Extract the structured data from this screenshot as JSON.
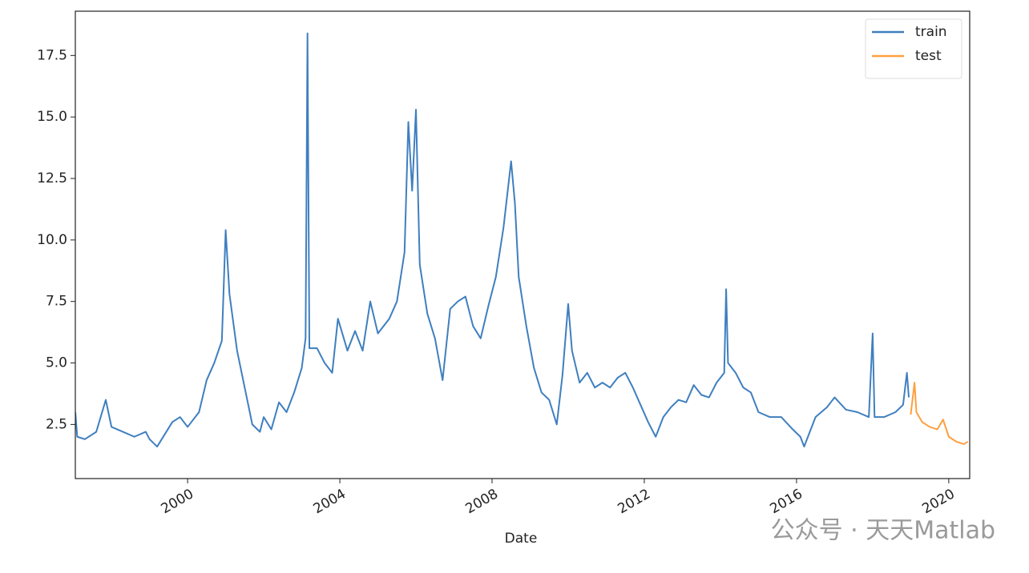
{
  "chart_data": {
    "type": "line",
    "x_label": "Date",
    "xlim": [
      1997.05,
      2020.55
    ],
    "xticks": [
      2000,
      2004,
      2008,
      2012,
      2016,
      2020
    ],
    "ylim": [
      0.3,
      19.3
    ],
    "yticks": [
      {
        "value": 2.5,
        "label": "2.5"
      },
      {
        "value": 5,
        "label": "5.0"
      },
      {
        "value": 7.5,
        "label": "7.5"
      },
      {
        "value": 10,
        "label": "10.0"
      },
      {
        "value": 12.5,
        "label": "12.5"
      },
      {
        "value": 15,
        "label": "15.0"
      },
      {
        "value": 17.5,
        "label": "17.5"
      }
    ],
    "legend": "upper right",
    "series": [
      {
        "name": "train",
        "color": "#3f7fbf",
        "x": [
          1997.05,
          1997.1,
          1997.3,
          1997.6,
          1997.85,
          1998.0,
          1998.3,
          1998.6,
          1998.9,
          1999.0,
          1999.2,
          1999.4,
          1999.6,
          1999.8,
          2000.0,
          2000.3,
          2000.5,
          2000.7,
          2000.9,
          2001.0,
          2001.1,
          2001.3,
          2001.5,
          2001.7,
          2001.9,
          2002.0,
          2002.2,
          2002.4,
          2002.6,
          2002.8,
          2003.0,
          2003.1,
          2003.15,
          2003.2,
          2003.4,
          2003.6,
          2003.8,
          2003.95,
          2004.2,
          2004.4,
          2004.6,
          2004.8,
          2005.0,
          2005.3,
          2005.5,
          2005.7,
          2005.8,
          2005.9,
          2006.0,
          2006.1,
          2006.3,
          2006.5,
          2006.7,
          2006.9,
          2007.1,
          2007.3,
          2007.5,
          2007.7,
          2007.9,
          2008.1,
          2008.3,
          2008.5,
          2008.6,
          2008.7,
          2008.9,
          2009.1,
          2009.3,
          2009.5,
          2009.7,
          2009.85,
          2010.0,
          2010.1,
          2010.3,
          2010.5,
          2010.7,
          2010.9,
          2011.1,
          2011.3,
          2011.5,
          2011.7,
          2011.9,
          2012.1,
          2012.3,
          2012.5,
          2012.7,
          2012.9,
          2013.1,
          2013.3,
          2013.5,
          2013.7,
          2013.9,
          2014.1,
          2014.15,
          2014.2,
          2014.4,
          2014.6,
          2014.8,
          2015.0,
          2015.3,
          2015.6,
          2015.9,
          2016.1,
          2016.2,
          2016.5,
          2016.8,
          2017.0,
          2017.3,
          2017.6,
          2017.9,
          2018.0,
          2018.05,
          2018.3,
          2018.6,
          2018.8,
          2018.9,
          2018.95
        ],
        "values": [
          3.0,
          2.0,
          1.9,
          2.2,
          3.5,
          2.4,
          2.2,
          2.0,
          2.2,
          1.9,
          1.6,
          2.1,
          2.6,
          2.8,
          2.4,
          3.0,
          4.3,
          5.0,
          5.9,
          10.4,
          7.8,
          5.5,
          4.0,
          2.5,
          2.2,
          2.8,
          2.3,
          3.4,
          3.0,
          3.8,
          4.8,
          6.0,
          18.4,
          5.6,
          5.6,
          5.0,
          4.6,
          6.8,
          5.5,
          6.3,
          5.5,
          7.5,
          6.2,
          6.8,
          7.5,
          9.5,
          14.8,
          12.0,
          15.3,
          9.0,
          7.0,
          6.0,
          4.3,
          7.2,
          7.5,
          7.7,
          6.5,
          6.0,
          7.3,
          8.5,
          10.5,
          13.2,
          11.5,
          8.5,
          6.5,
          4.8,
          3.8,
          3.5,
          2.5,
          4.5,
          7.4,
          5.5,
          4.2,
          4.6,
          4.0,
          4.2,
          4.0,
          4.4,
          4.6,
          4.0,
          3.3,
          2.6,
          2.0,
          2.8,
          3.2,
          3.5,
          3.4,
          4.1,
          3.7,
          3.6,
          4.2,
          4.6,
          8.0,
          5.0,
          4.6,
          4.0,
          3.8,
          3.0,
          2.8,
          2.8,
          2.3,
          2.0,
          1.6,
          2.8,
          3.2,
          3.6,
          3.1,
          3.0,
          2.8,
          6.2,
          2.8,
          2.8,
          3.0,
          3.3,
          4.6,
          3.6
        ]
      },
      {
        "name": "test",
        "color": "#ff9f40",
        "x": [
          2019.0,
          2019.1,
          2019.15,
          2019.3,
          2019.5,
          2019.7,
          2019.85,
          2020.0,
          2020.2,
          2020.4,
          2020.5
        ],
        "values": [
          2.9,
          4.2,
          3.0,
          2.6,
          2.4,
          2.3,
          2.7,
          2.0,
          1.8,
          1.7,
          1.8
        ]
      }
    ],
    "watermark": "公众号 · 天天Matlab"
  }
}
